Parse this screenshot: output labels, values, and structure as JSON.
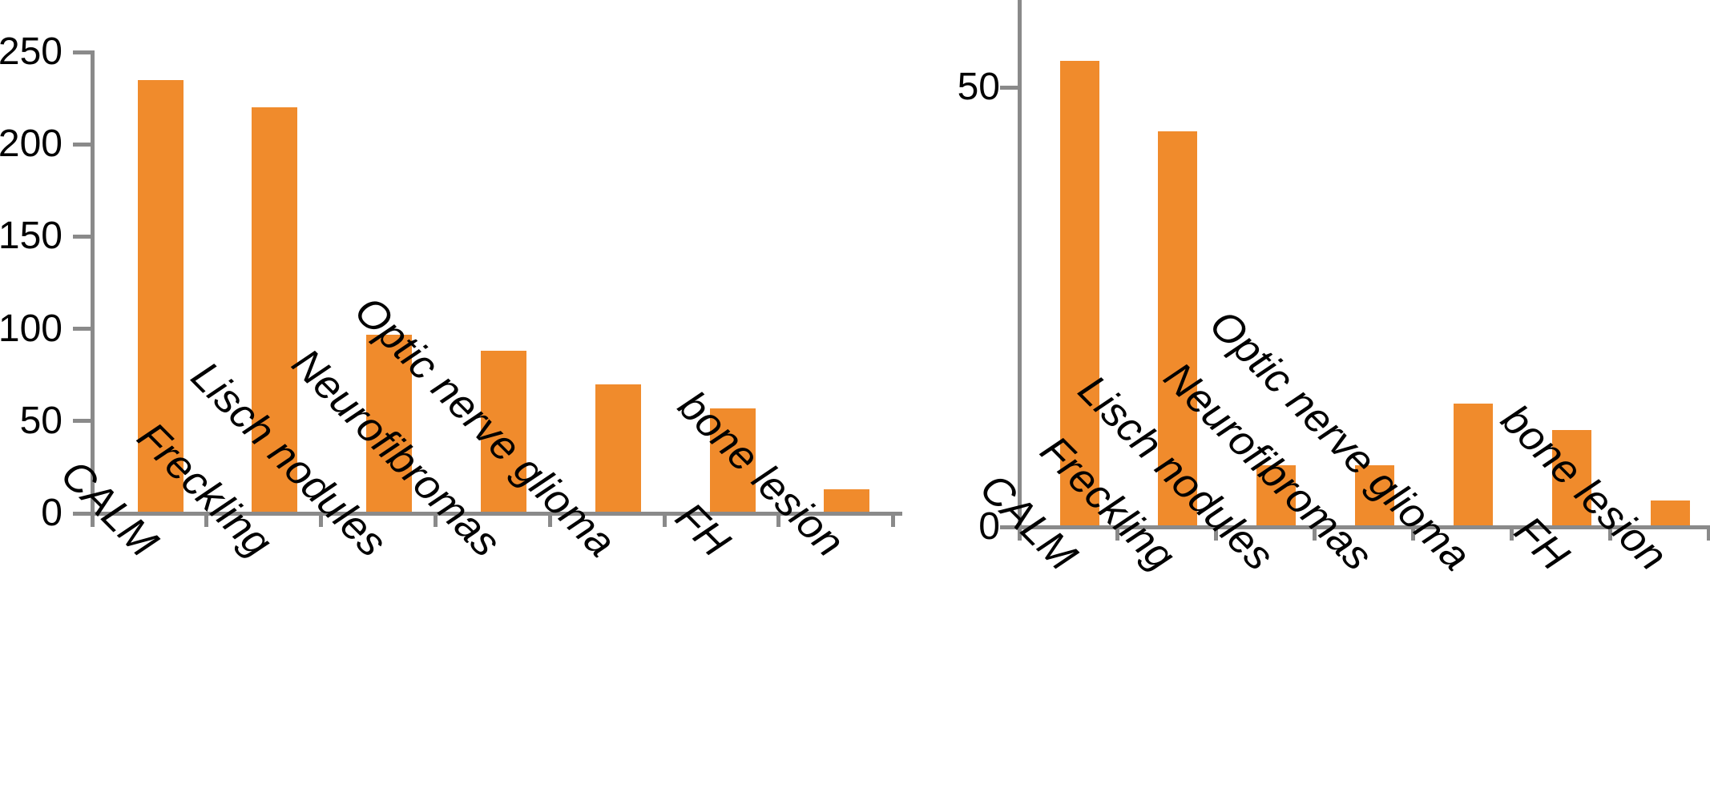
{
  "figure": {
    "background_color": "#ffffff",
    "bar_color": "#F08B2C",
    "axis_color": "#8A8A8A",
    "text_color": "#000000",
    "title": ""
  },
  "chart_data": [
    {
      "panel": "left",
      "type": "bar",
      "title": "",
      "xlabel": "",
      "ylabel": "",
      "categories": [
        "CALM",
        "Freckling",
        "Lisch nodules",
        "Neurofibromas",
        "Optic nerve glioma",
        "FH",
        "bone lesion"
      ],
      "values": [
        235,
        220,
        97,
        88,
        70,
        57,
        13
      ],
      "ylim": [
        0,
        250
      ],
      "yticks": [
        0,
        50,
        100,
        150,
        200,
        250
      ],
      "grid": false,
      "legend": null,
      "tick_label_style": "italic, rotated 45deg"
    },
    {
      "panel": "right",
      "type": "bar",
      "title": "",
      "xlabel": "",
      "ylabel": "",
      "categories": [
        "CALM",
        "Freckling",
        "Lisch nodules",
        "Neurofibromas",
        "Optic nerve glioma",
        "FH",
        "bone lesion"
      ],
      "values": [
        53,
        45,
        7,
        7,
        14,
        11,
        3
      ],
      "ylim": [
        0,
        60
      ],
      "yticks": [
        0,
        50
      ],
      "grid": false,
      "legend": null,
      "tick_label_style": "italic, rotated 45deg"
    }
  ]
}
